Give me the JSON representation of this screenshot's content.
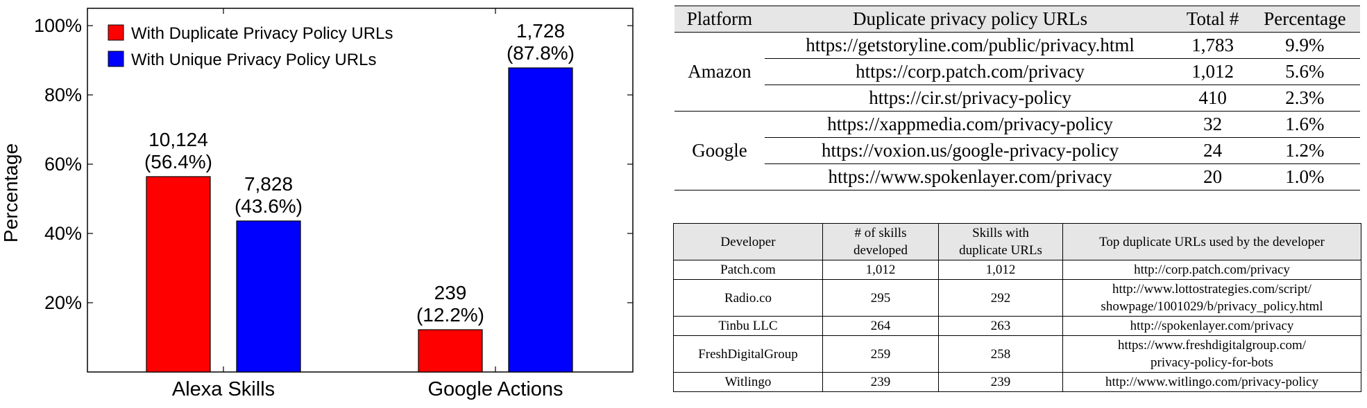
{
  "chart_data": {
    "type": "bar",
    "categories": [
      "Alexa Skills",
      "Google Actions"
    ],
    "series": [
      {
        "name": "With Duplicate Privacy Policy URLs",
        "color": "#ff0000",
        "values": [
          56.4,
          12.2
        ],
        "labels": [
          [
            "10,124",
            "(56.4%)"
          ],
          [
            "239",
            "(12.2%)"
          ]
        ]
      },
      {
        "name": "With Unique Privacy Policy URLs",
        "color": "#0000ff",
        "values": [
          43.6,
          87.8
        ],
        "labels": [
          [
            "7,828",
            "(43.6%)"
          ],
          [
            "1,728",
            "(87.8%)"
          ]
        ]
      }
    ],
    "ylabel": "Percentage",
    "ylim": [
      0,
      105
    ],
    "yticks": [
      20,
      40,
      60,
      80,
      100
    ],
    "ytick_labels": [
      "20%",
      "40%",
      "60%",
      "80%",
      "100%"
    ],
    "legend_position": "top-left"
  },
  "table1": {
    "headers": [
      "Platform",
      "Duplicate privacy policy URLs",
      "Total #",
      "Percentage"
    ],
    "groups": [
      {
        "platform": "Amazon",
        "rows": [
          {
            "url": "https://getstoryline.com/public/privacy.html",
            "total": "1,783",
            "pct": "9.9%"
          },
          {
            "url": "https://corp.patch.com/privacy",
            "total": "1,012",
            "pct": "5.6%"
          },
          {
            "url": "https://cir.st/privacy-policy",
            "total": "410",
            "pct": "2.3%"
          }
        ]
      },
      {
        "platform": "Google",
        "rows": [
          {
            "url": "https://xappmedia.com/privacy-policy",
            "total": "32",
            "pct": "1.6%"
          },
          {
            "url": "https://voxion.us/google-privacy-policy",
            "total": "24",
            "pct": "1.2%"
          },
          {
            "url": "https://www.spokenlayer.com/privacy",
            "total": "20",
            "pct": "1.0%"
          }
        ]
      }
    ]
  },
  "table2": {
    "headers": [
      [
        "Developer"
      ],
      [
        "# of skills",
        "developed"
      ],
      [
        "Skills with",
        "duplicate URLs"
      ],
      [
        "Top duplicate URLs used by the developer"
      ]
    ],
    "rows": [
      {
        "developer": "Patch.com",
        "developed": "1,012",
        "duplicate": "1,012",
        "url": [
          "http://corp.patch.com/privacy"
        ]
      },
      {
        "developer": "Radio.co",
        "developed": "295",
        "duplicate": "292",
        "url": [
          "http://www.lottostrategies.com/script/",
          "showpage/1001029/b/privacy_policy.html"
        ]
      },
      {
        "developer": "Tinbu LLC",
        "developed": "264",
        "duplicate": "263",
        "url": [
          "http://spokenlayer.com/privacy"
        ]
      },
      {
        "developer": "FreshDigitalGroup",
        "developed": "259",
        "duplicate": "258",
        "url": [
          "https://www.freshdigitalgroup.com/",
          "privacy-policy-for-bots"
        ]
      },
      {
        "developer": "Witlingo",
        "developed": "239",
        "duplicate": "239",
        "url": [
          "http://www.witlingo.com/privacy-policy"
        ]
      }
    ]
  }
}
